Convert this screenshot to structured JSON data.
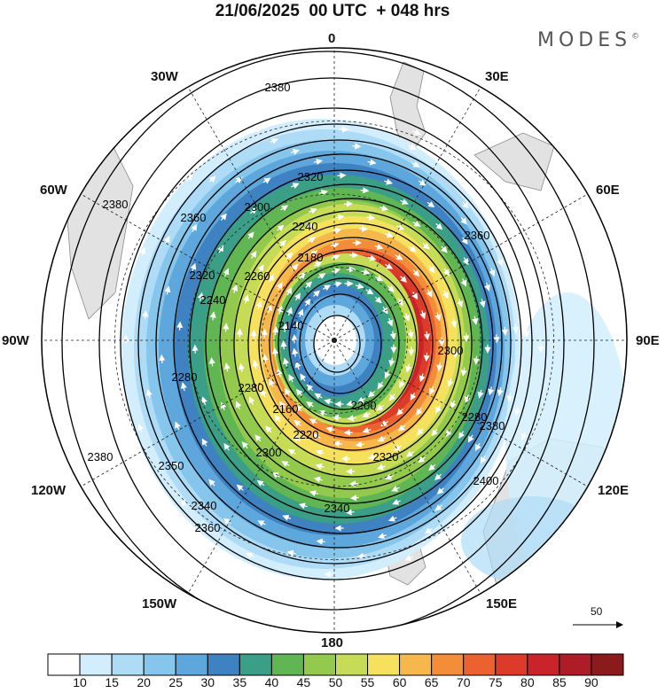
{
  "header": {
    "title": "21/06/2025  00 UTC  + 048 hrs",
    "brand": "MODES",
    "brand_mark": "©"
  },
  "map": {
    "projection": "polar-stereographic-south",
    "longitude_labels": {
      "top": "0",
      "top_right": "30E",
      "right_upper": "60E",
      "right": "90E",
      "right_lower": "120E",
      "bottom_right": "150E",
      "bottom": "180",
      "bottom_left": "150W",
      "left_lower": "120W",
      "left": "90W",
      "left_upper": "60W",
      "top_left": "30W"
    },
    "contour_labels": [
      "2380",
      "2380",
      "2380",
      "2360",
      "2360",
      "2350",
      "2340",
      "2340",
      "2320",
      "2320",
      "2300",
      "2300",
      "2280",
      "2280",
      "2280",
      "2260",
      "2240",
      "2220",
      "2200",
      "2180",
      "2160",
      "2140",
      "2240",
      "2380",
      "2380",
      "2360",
      "2320",
      "2300",
      "2400"
    ],
    "wind_reference": {
      "label": "50"
    },
    "shading_colors": [
      "#ffffff",
      "#d2eefc",
      "#aedcf6",
      "#86c6ec",
      "#5ea7dc",
      "#3f82c2",
      "#3b9e86",
      "#5fb653",
      "#93c94c",
      "#c6dc56",
      "#f6e15e",
      "#f7b84b",
      "#f48d39",
      "#ec6130",
      "#dc3b2a",
      "#c8242a",
      "#ad1c27",
      "#8b1a1c"
    ]
  },
  "colorbar": {
    "tick_labels": [
      "10",
      "15",
      "20",
      "25",
      "30",
      "35",
      "40",
      "45",
      "50",
      "55",
      "60",
      "65",
      "70",
      "75",
      "80",
      "85",
      "90"
    ]
  }
}
